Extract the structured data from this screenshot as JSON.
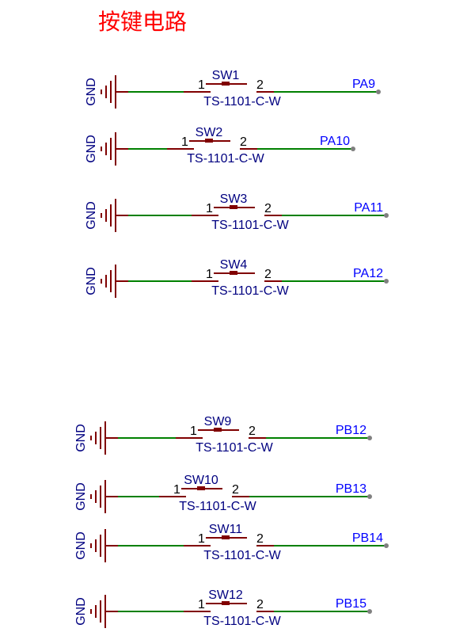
{
  "title": "按键电路",
  "colors": {
    "title": "#ff0000",
    "symbol": "#800000",
    "wire": "#008000",
    "component_text": "#000080",
    "net_label": "#0000ff",
    "pin_number": "#000000",
    "junction": "#808080"
  },
  "circuits": [
    {
      "gnd_label": "GND",
      "pin1": "1",
      "pin2": "2",
      "designator": "SW1",
      "part": "TS-1101-C-W",
      "net": "PA9"
    },
    {
      "gnd_label": "GND",
      "pin1": "1",
      "pin2": "2",
      "designator": "SW2",
      "part": "TS-1101-C-W",
      "net": "PA10"
    },
    {
      "gnd_label": "GND",
      "pin1": "1",
      "pin2": "2",
      "designator": "SW3",
      "part": "TS-1101-C-W",
      "net": "PA11"
    },
    {
      "gnd_label": "GND",
      "pin1": "1",
      "pin2": "2",
      "designator": "SW4",
      "part": "TS-1101-C-W",
      "net": "PA12"
    },
    {
      "gnd_label": "GND",
      "pin1": "1",
      "pin2": "2",
      "designator": "SW9",
      "part": "TS-1101-C-W",
      "net": "PB12"
    },
    {
      "gnd_label": "GND",
      "pin1": "1",
      "pin2": "2",
      "designator": "SW10",
      "part": "TS-1101-C-W",
      "net": "PB13"
    },
    {
      "gnd_label": "GND",
      "pin1": "1",
      "pin2": "2",
      "designator": "SW11",
      "part": "TS-1101-C-W",
      "net": "PB14"
    },
    {
      "gnd_label": "GND",
      "pin1": "1",
      "pin2": "2",
      "designator": "SW12",
      "part": "TS-1101-C-W",
      "net": "PB15"
    }
  ]
}
